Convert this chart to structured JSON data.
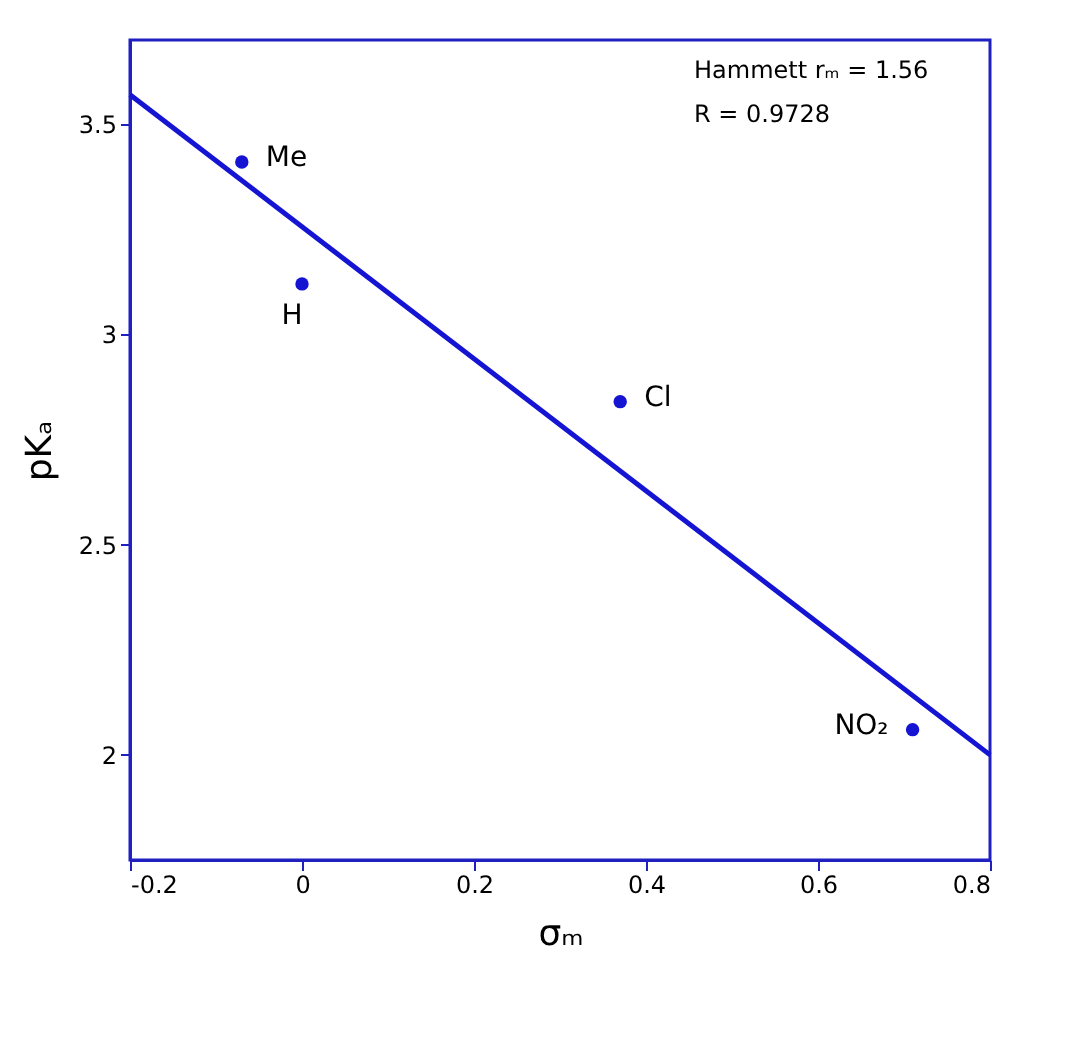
{
  "chart_data": {
    "type": "scatter",
    "xlabel": "σₘ",
    "ylabel": "pKₐ",
    "xlim": [
      -0.2,
      0.8
    ],
    "xticks": [
      -0.2,
      0,
      0.2,
      0.4,
      0.6,
      0.8
    ],
    "ylim": [
      1.75,
      3.7
    ],
    "yticks": [
      2,
      2.5,
      3,
      3.5
    ],
    "grid": false,
    "marker": "circle",
    "series": [
      {
        "color": "#1414d2",
        "x": [
          -0.07,
          0,
          0.37,
          0.71
        ],
        "values": [
          3.41,
          3.12,
          2.84,
          2.06
        ]
      },
      {
        "type": "line",
        "color": "#1414d2",
        "x": [
          -0.2,
          0.8
        ],
        "values": [
          3.57,
          2.0
        ],
        "line_style": "solid",
        "marker": "none"
      }
    ],
    "annotations": [
      {
        "text": "Me",
        "x": -0.07,
        "y": 3.41
      },
      {
        "text": "H",
        "x": 0,
        "y": 3.12
      },
      {
        "text": "Cl",
        "x": 0.37,
        "y": 2.84
      },
      {
        "text": "NO₂",
        "x": 0.71,
        "y": 2.06
      },
      "Hammett rₘ = 1.56",
      "R = 0.9728"
    ]
  }
}
